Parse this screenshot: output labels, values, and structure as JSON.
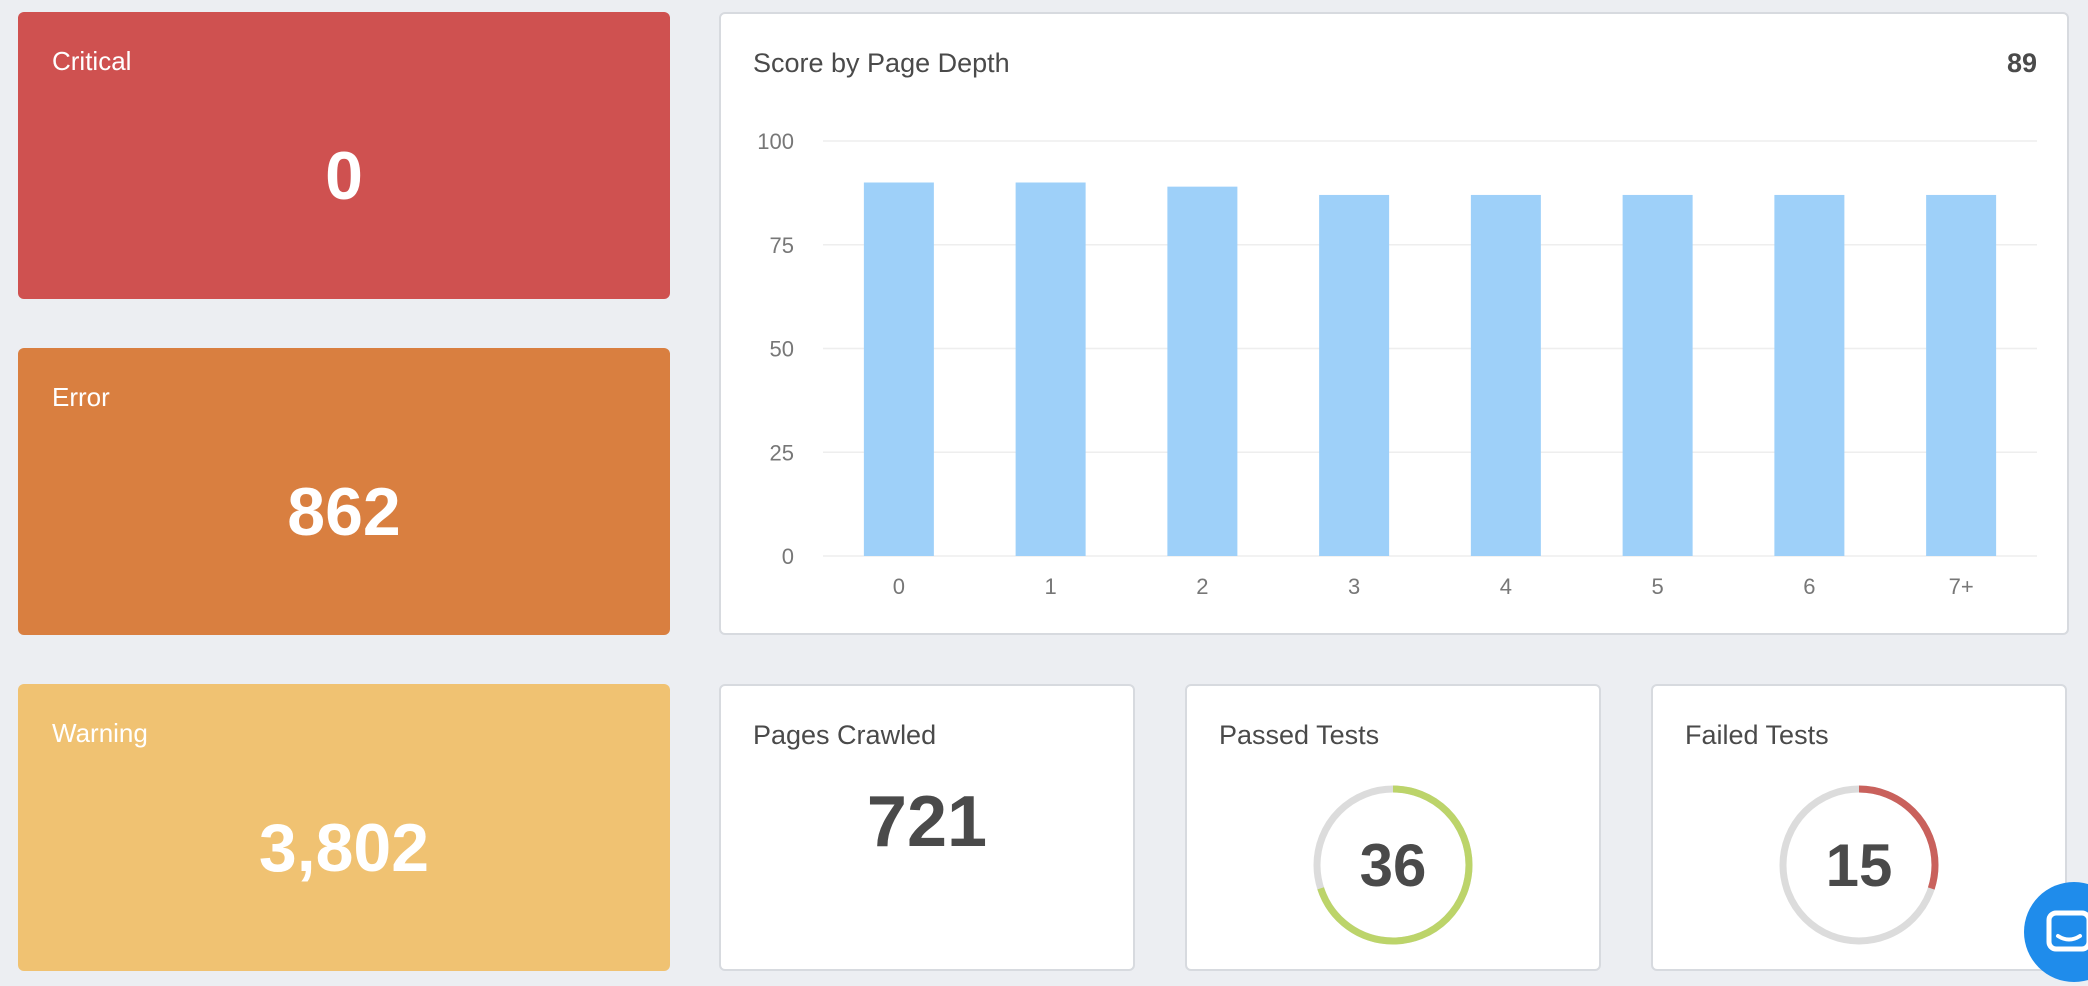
{
  "cards": {
    "critical": {
      "label": "Critical",
      "value": "0",
      "color": "#cf5150"
    },
    "error": {
      "label": "Error",
      "value": "862",
      "color": "#d97f40"
    },
    "warning": {
      "label": "Warning",
      "value": "3,802",
      "color": "#f0c272"
    }
  },
  "score_panel": {
    "title": "Score by Page Depth",
    "score": "89"
  },
  "chart_data": {
    "type": "bar",
    "categories": [
      "0",
      "1",
      "2",
      "3",
      "4",
      "5",
      "6",
      "7+"
    ],
    "values": [
      90,
      90,
      89,
      87,
      87,
      87,
      87,
      87
    ],
    "ylim": [
      0,
      100
    ],
    "yticks": [
      "0",
      "25",
      "50",
      "75",
      "100"
    ],
    "bar_color": "#9ed0f9",
    "grid": true
  },
  "pages_crawled": {
    "title": "Pages Crawled",
    "value": "721"
  },
  "passed_tests": {
    "title": "Passed Tests",
    "value": "36",
    "ring_fraction": 0.7,
    "ring_color": "#bcd46a"
  },
  "failed_tests": {
    "title": "Failed Tests",
    "value": "15",
    "ring_fraction": 0.3,
    "ring_color": "#c9615c"
  },
  "icons": {
    "chat": "chat-bubble-icon"
  }
}
